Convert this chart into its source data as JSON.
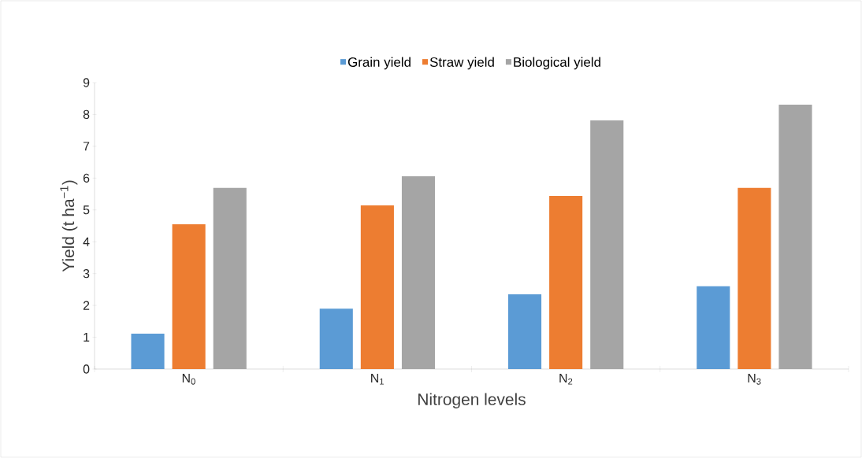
{
  "chart_data": {
    "type": "bar",
    "categories": [
      "N$_{0}$",
      "N$_{1}$",
      "N$_{2}$",
      "N$_{3}$"
    ],
    "series": [
      {
        "name": "Grain yield",
        "color": "#5b9bd5",
        "values": [
          1.11,
          1.9,
          2.35,
          2.6
        ]
      },
      {
        "name": "Straw yield",
        "color": "#ed7d31",
        "values": [
          4.55,
          5.14,
          5.44,
          5.69
        ]
      },
      {
        "name": "Biological yield",
        "color": "#a5a5a5",
        "values": [
          5.69,
          6.06,
          7.81,
          8.31
        ]
      }
    ],
    "xlabel": "Nitrogen levels",
    "ylabel": "Yield (t ha$^{−1}$)",
    "ylim": [
      0,
      9
    ],
    "yticks": [
      0,
      1,
      2,
      3,
      4,
      5,
      6,
      7,
      8,
      9
    ],
    "legend": "top",
    "grid": false
  }
}
